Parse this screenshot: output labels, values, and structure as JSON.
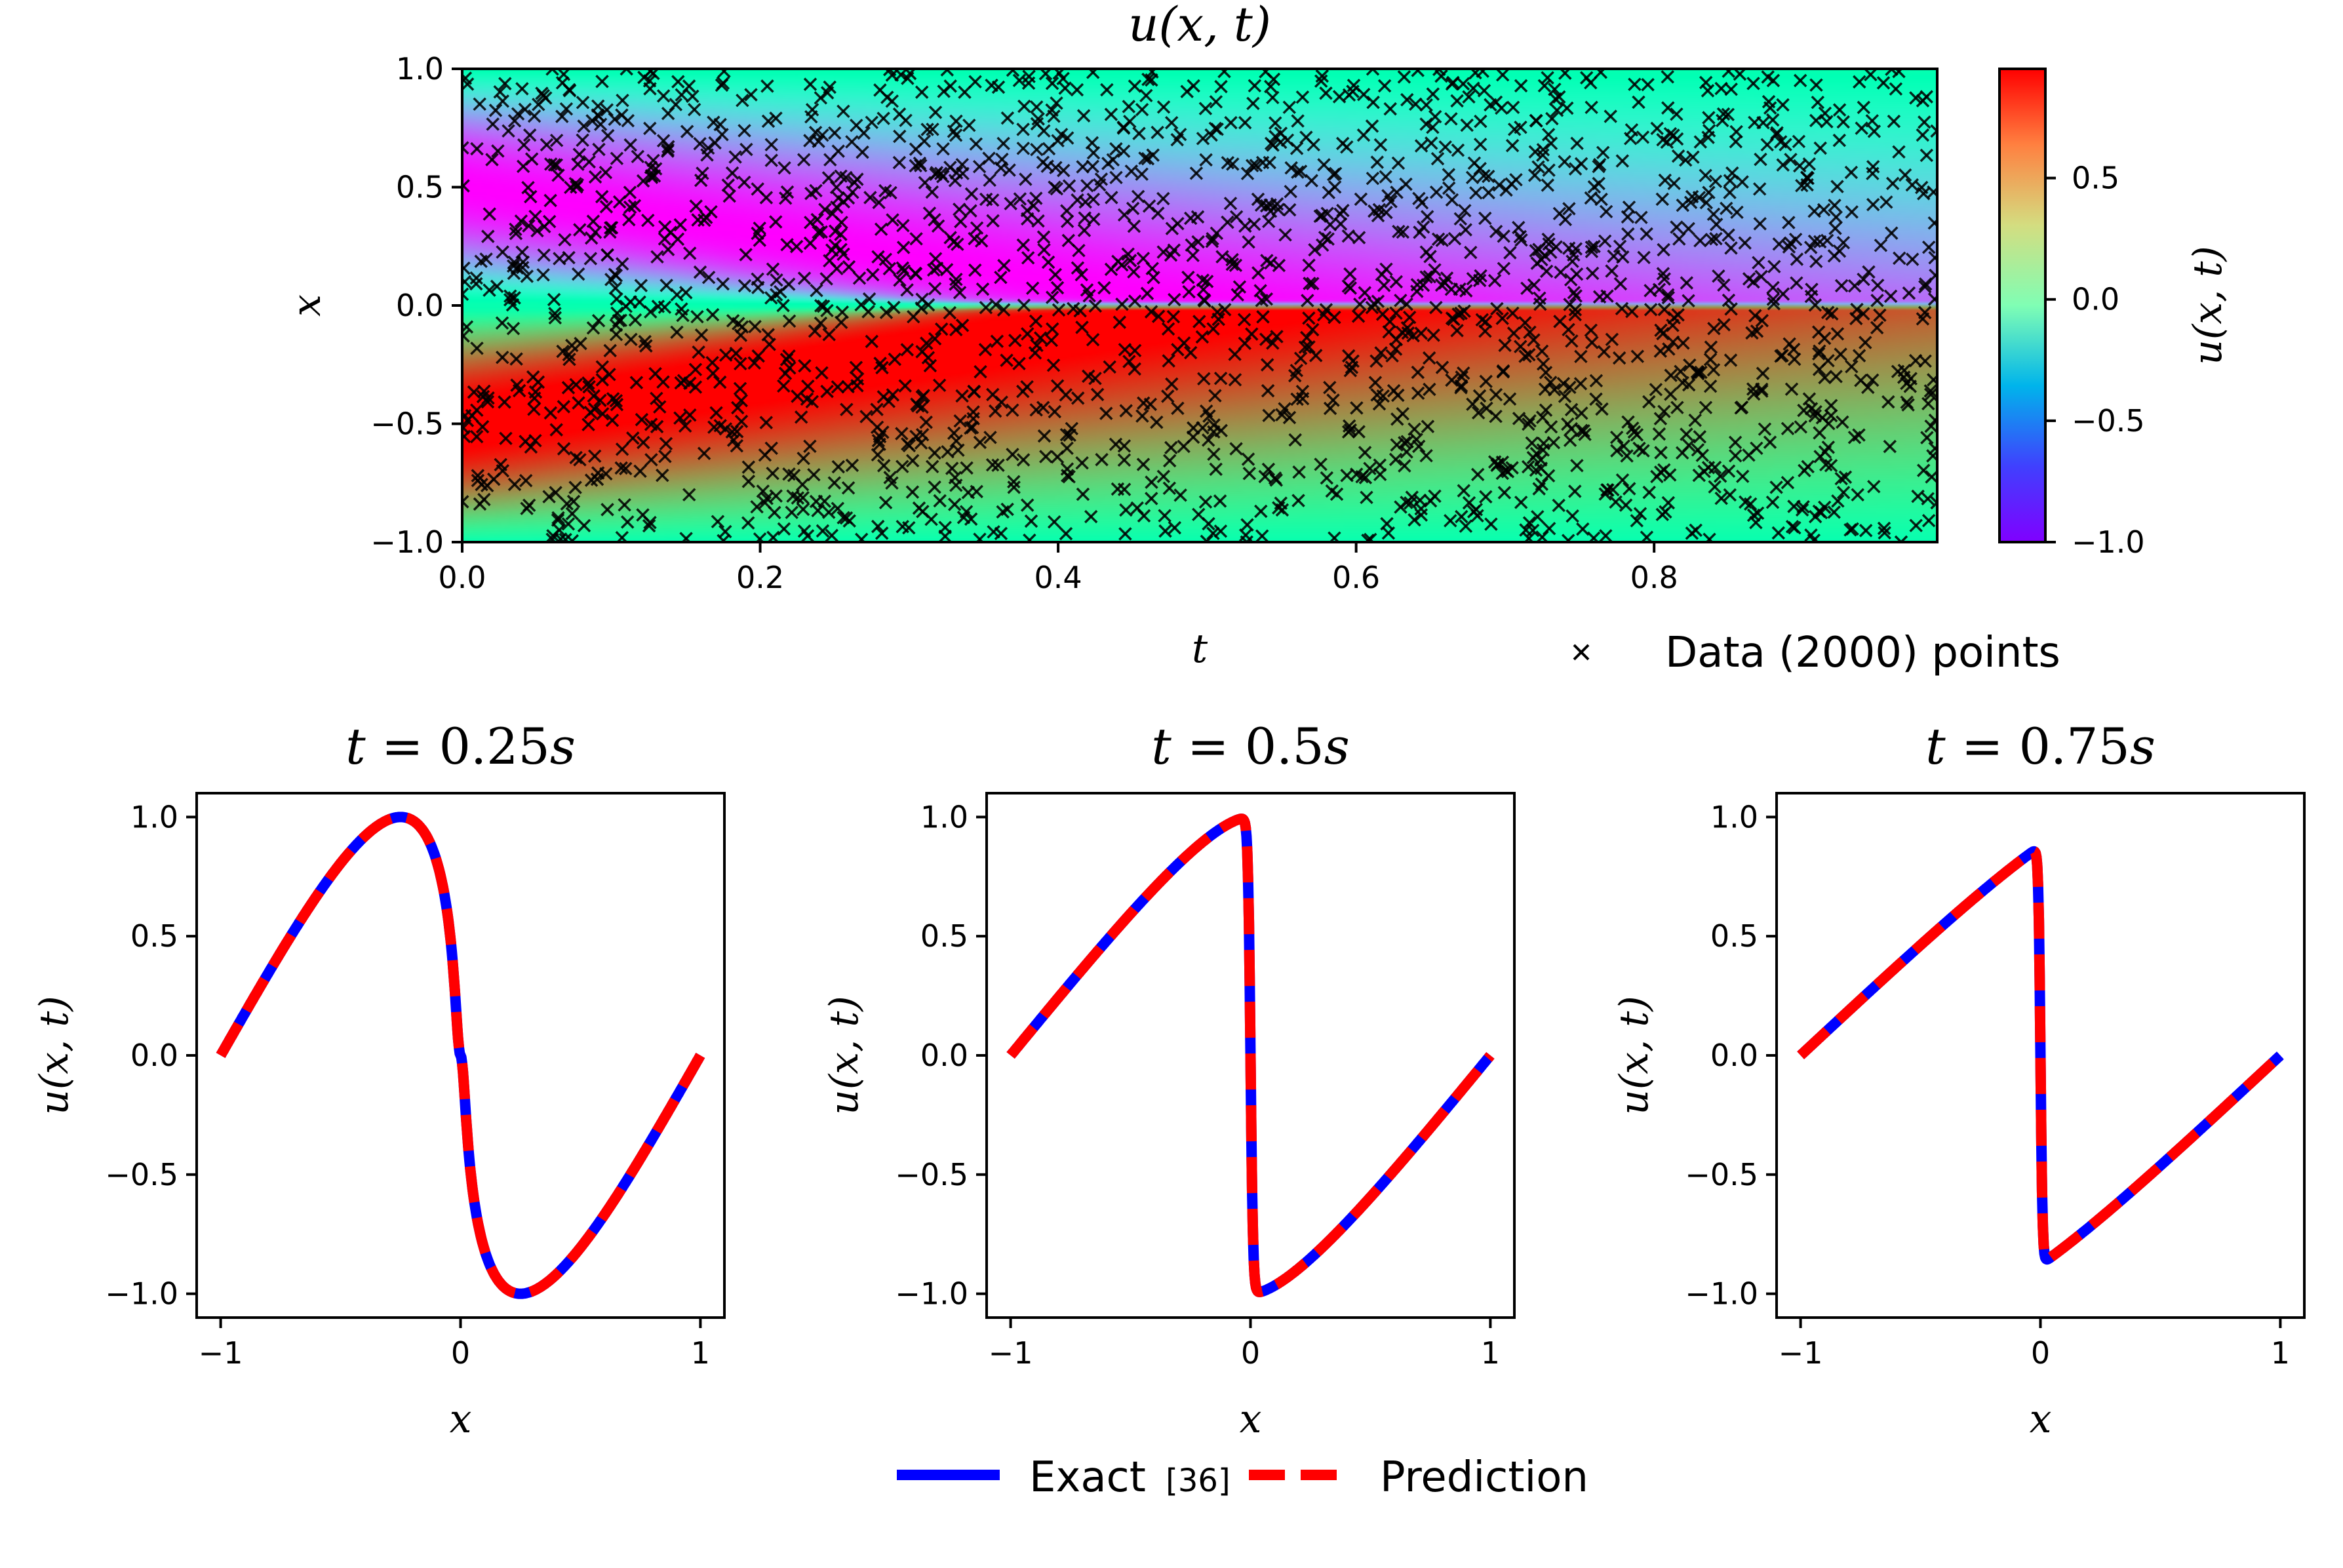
{
  "heatmap": {
    "title": "u(x, t)",
    "xlabel": "t",
    "ylabel": "x",
    "colorbar_label": "u(x, t)",
    "x_ticks": [
      {
        "value": 0.0,
        "label": "0.0"
      },
      {
        "value": 0.2,
        "label": "0.2"
      },
      {
        "value": 0.4,
        "label": "0.4"
      },
      {
        "value": 0.6,
        "label": "0.6"
      },
      {
        "value": 0.8,
        "label": "0.8"
      }
    ],
    "y_ticks": [
      {
        "value": 1.0,
        "label": "1.0"
      },
      {
        "value": 0.5,
        "label": "0.5"
      },
      {
        "value": 0.0,
        "label": "0.0"
      },
      {
        "value": -0.5,
        "label": "−0.5"
      },
      {
        "value": -1.0,
        "label": "−1.0"
      }
    ],
    "colorbar_ticks": [
      {
        "value": 0.5,
        "label": "0.5"
      },
      {
        "value": 0.0,
        "label": "0.0"
      },
      {
        "value": -0.5,
        "label": "−0.5"
      },
      {
        "value": -1.0,
        "label": "−1.0"
      }
    ],
    "legend_label": "Data (2000) points"
  },
  "slices": {
    "legend_exact": "Exact",
    "legend_ref": "[36]",
    "legend_pred": "Prediction",
    "exact_color": "#0000ff",
    "pred_color": "#ff0000",
    "x_ticks": [
      {
        "value": -1,
        "label": "−1"
      },
      {
        "value": 0,
        "label": "0"
      },
      {
        "value": 1,
        "label": "1"
      }
    ],
    "y_ticks": [
      {
        "value": 1.0,
        "label": "1.0"
      },
      {
        "value": 0.5,
        "label": "0.5"
      },
      {
        "value": 0.0,
        "label": "0.0"
      },
      {
        "value": -0.5,
        "label": "−0.5"
      },
      {
        "value": -1.0,
        "label": "−1.0"
      }
    ],
    "xlabel": "x",
    "ylabel": "u(x, t)"
  },
  "chart_data": [
    {
      "type": "heatmap",
      "title": "u(x, t)",
      "xlabel": "t",
      "ylabel": "x",
      "xlim": [
        0.0,
        0.99
      ],
      "ylim": [
        -1.0,
        1.0
      ],
      "colormap": "rainbow",
      "clim": [
        -1.0,
        0.95
      ],
      "scatter_series": {
        "name": "Data (2000) points",
        "count": 2000,
        "marker": "x",
        "color": "#000000"
      },
      "grid": false
    },
    {
      "type": "line",
      "title": "t = 0.25s",
      "xlabel": "x",
      "ylabel": "u(x, t)",
      "xlim": [
        -1.1,
        1.1
      ],
      "ylim": [
        -1.1,
        1.1
      ],
      "t": 0.25,
      "series": [
        {
          "name": "Exact [36]"
        },
        {
          "name": "Prediction"
        }
      ]
    },
    {
      "type": "line",
      "title": "t = 0.5s",
      "xlabel": "x",
      "ylabel": "u(x, t)",
      "xlim": [
        -1.1,
        1.1
      ],
      "ylim": [
        -1.1,
        1.1
      ],
      "t": 0.5,
      "series": [
        {
          "name": "Exact [36]"
        },
        {
          "name": "Prediction"
        }
      ]
    },
    {
      "type": "line",
      "title": "t = 0.75s",
      "xlabel": "x",
      "ylabel": "u(x, t)",
      "xlim": [
        -1.1,
        1.1
      ],
      "ylim": [
        -1.1,
        1.1
      ],
      "t": 0.75,
      "series": [
        {
          "name": "Exact [36]"
        },
        {
          "name": "Prediction"
        }
      ]
    }
  ],
  "slice_titles": [
    {
      "lhs": "t",
      "eq": " = ",
      "num": "0.25",
      "unit": "s"
    },
    {
      "lhs": "t",
      "eq": " = ",
      "num": "0.5",
      "unit": "s"
    },
    {
      "lhs": "t",
      "eq": " = ",
      "num": "0.75",
      "unit": "s"
    }
  ]
}
